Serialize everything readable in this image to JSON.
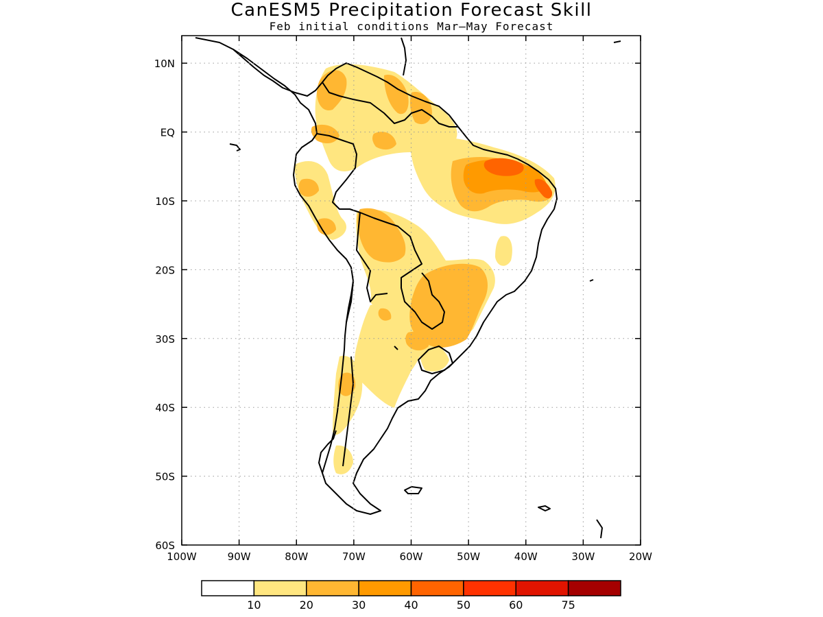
{
  "title": "CanESM5 Precipitation Forecast Skill",
  "subtitle": "Feb initial conditions  Mar—May Forecast",
  "map": {
    "lon_range": [
      -100,
      -20
    ],
    "lat_range": [
      -60,
      14
    ],
    "lon_ticks": [
      {
        "value": -100,
        "label": "100W"
      },
      {
        "value": -90,
        "label": "90W"
      },
      {
        "value": -80,
        "label": "80W"
      },
      {
        "value": -70,
        "label": "70W"
      },
      {
        "value": -60,
        "label": "60W"
      },
      {
        "value": -50,
        "label": "50W"
      },
      {
        "value": -40,
        "label": "40W"
      },
      {
        "value": -30,
        "label": "30W"
      },
      {
        "value": -20,
        "label": "20W"
      }
    ],
    "lat_ticks": [
      {
        "value": 10,
        "label": "10N"
      },
      {
        "value": 0,
        "label": "EQ"
      },
      {
        "value": -10,
        "label": "10S"
      },
      {
        "value": -20,
        "label": "20S"
      },
      {
        "value": -30,
        "label": "30S"
      },
      {
        "value": -40,
        "label": "40S"
      },
      {
        "value": -50,
        "label": "50S"
      },
      {
        "value": -60,
        "label": "60S"
      }
    ],
    "grid": "dotted"
  },
  "colorbar": {
    "colors": [
      "#ffffff",
      "#ffe680",
      "#ffb732",
      "#ff9a00",
      "#ff6400",
      "#ff3200",
      "#e11400",
      "#a50000"
    ],
    "labels": [
      "10",
      "20",
      "30",
      "40",
      "50",
      "60",
      "75"
    ]
  }
}
